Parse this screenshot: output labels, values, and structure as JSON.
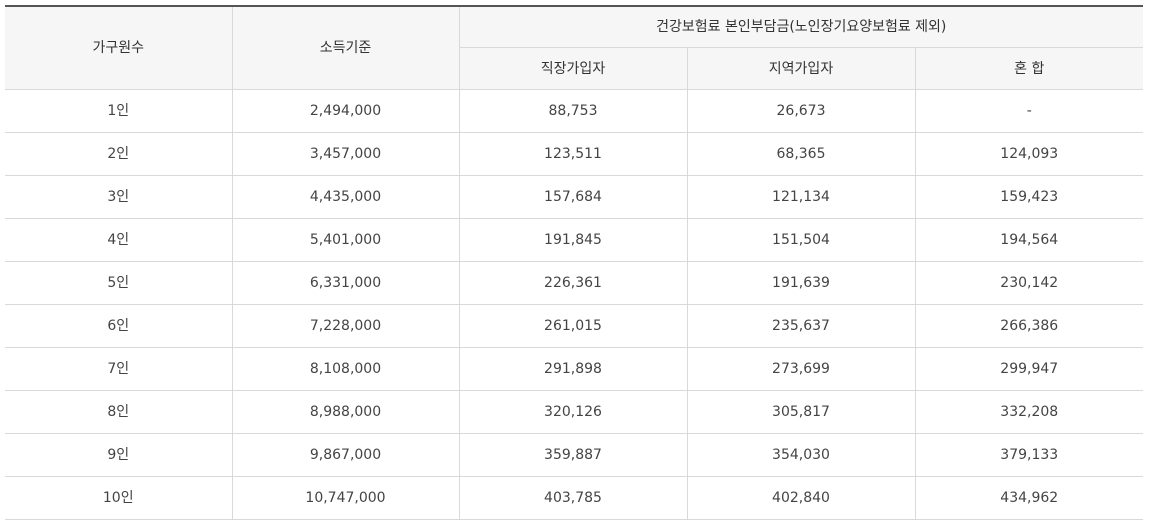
{
  "table": {
    "headers": {
      "household_size": "가구원수",
      "income_standard": "소득기준",
      "premium_group": "건강보험료 본인부담금(노인장기요양보험료 제외)",
      "employee": "직장가입자",
      "regional": "지역가입자",
      "mixed": "혼 합"
    },
    "rows": [
      {
        "household": "1인",
        "income": "2,494,000",
        "employee": "88,753",
        "regional": "26,673",
        "mixed": "-"
      },
      {
        "household": "2인",
        "income": "3,457,000",
        "employee": "123,511",
        "regional": "68,365",
        "mixed": "124,093"
      },
      {
        "household": "3인",
        "income": "4,435,000",
        "employee": "157,684",
        "regional": "121,134",
        "mixed": "159,423"
      },
      {
        "household": "4인",
        "income": "5,401,000",
        "employee": "191,845",
        "regional": "151,504",
        "mixed": "194,564"
      },
      {
        "household": "5인",
        "income": "6,331,000",
        "employee": "226,361",
        "regional": "191,639",
        "mixed": "230,142"
      },
      {
        "household": "6인",
        "income": "7,228,000",
        "employee": "261,015",
        "regional": "235,637",
        "mixed": "266,386"
      },
      {
        "household": "7인",
        "income": "8,108,000",
        "employee": "291,898",
        "regional": "273,699",
        "mixed": "299,947"
      },
      {
        "household": "8인",
        "income": "8,988,000",
        "employee": "320,126",
        "regional": "305,817",
        "mixed": "332,208"
      },
      {
        "household": "9인",
        "income": "9,867,000",
        "employee": "359,887",
        "regional": "354,030",
        "mixed": "379,133"
      },
      {
        "household": "10인",
        "income": "10,747,000",
        "employee": "403,785",
        "regional": "402,840",
        "mixed": "434,962"
      }
    ]
  }
}
